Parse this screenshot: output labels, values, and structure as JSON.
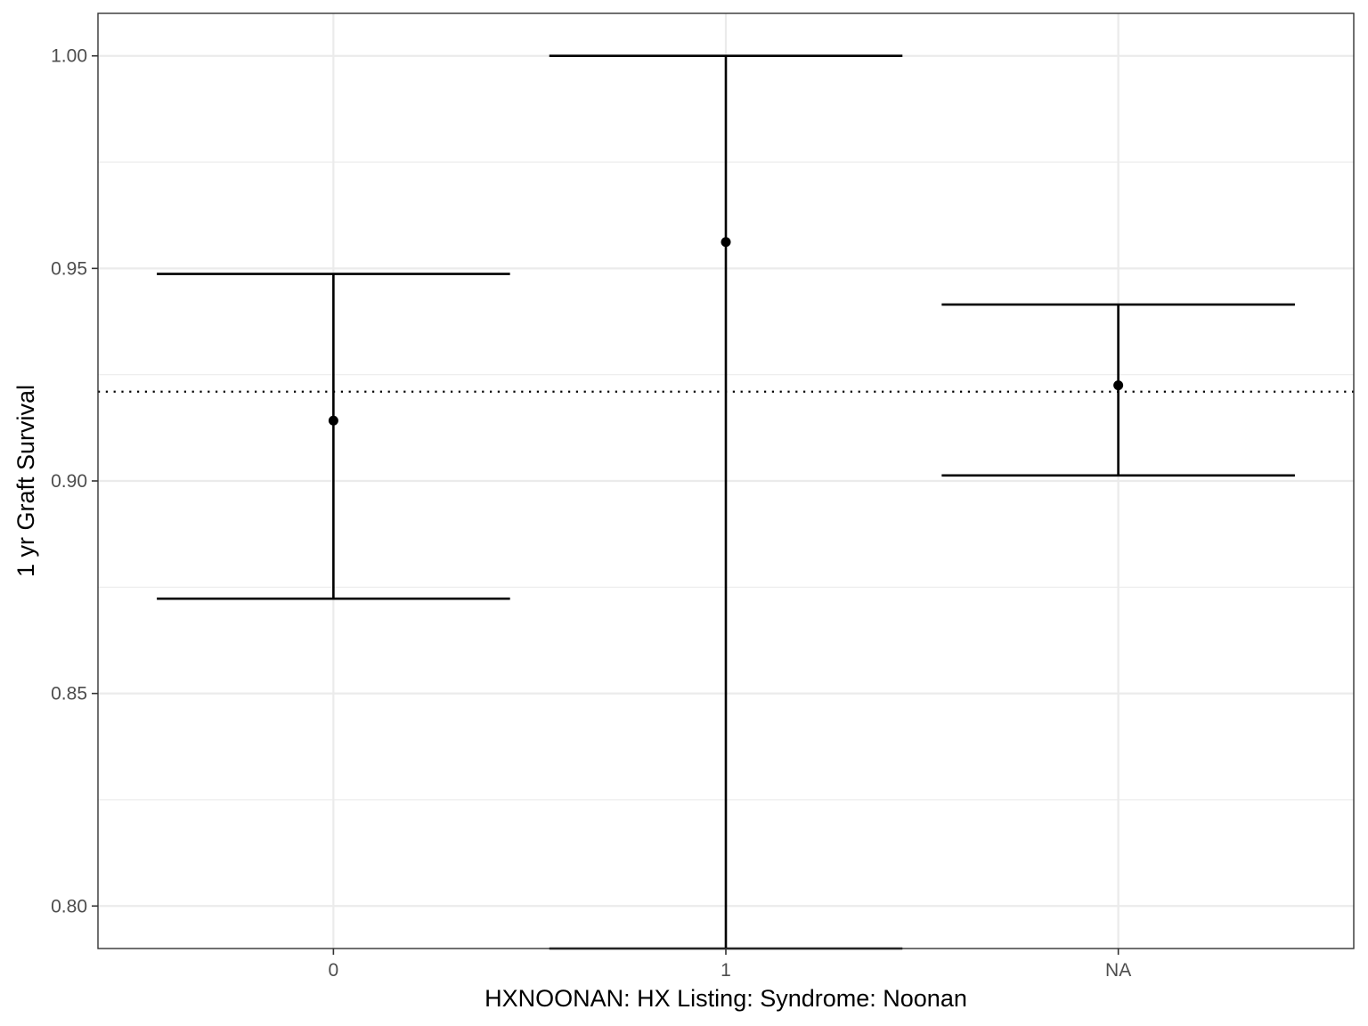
{
  "chart_data": {
    "type": "errorbar",
    "title": "",
    "xlabel": "HXNOONAN: HX Listing: Syndrome: Noonan",
    "ylabel": "1 yr Graft Survival",
    "categories": [
      "0",
      "1",
      "NA"
    ],
    "estimates": [
      0.9142,
      0.9562,
      0.9225
    ],
    "lower": [
      0.8723,
      0.79,
      0.9013
    ],
    "upper": [
      0.9487,
      1.0,
      0.9415
    ],
    "reference_line": 0.921,
    "reference_line_style": "dotted",
    "ylim": [
      0.79,
      1.01
    ],
    "yticks": [
      0.8,
      0.85,
      0.9,
      0.95,
      1.0
    ],
    "ytick_labels": [
      "0.80",
      "0.85",
      "0.90",
      "0.95",
      "1.00"
    ],
    "grid": true,
    "legend": "none",
    "colors": {
      "marks": "#000000",
      "grid": "#ebebeb",
      "panel_border": "#333333",
      "tick_text": "#4d4d4d"
    }
  }
}
